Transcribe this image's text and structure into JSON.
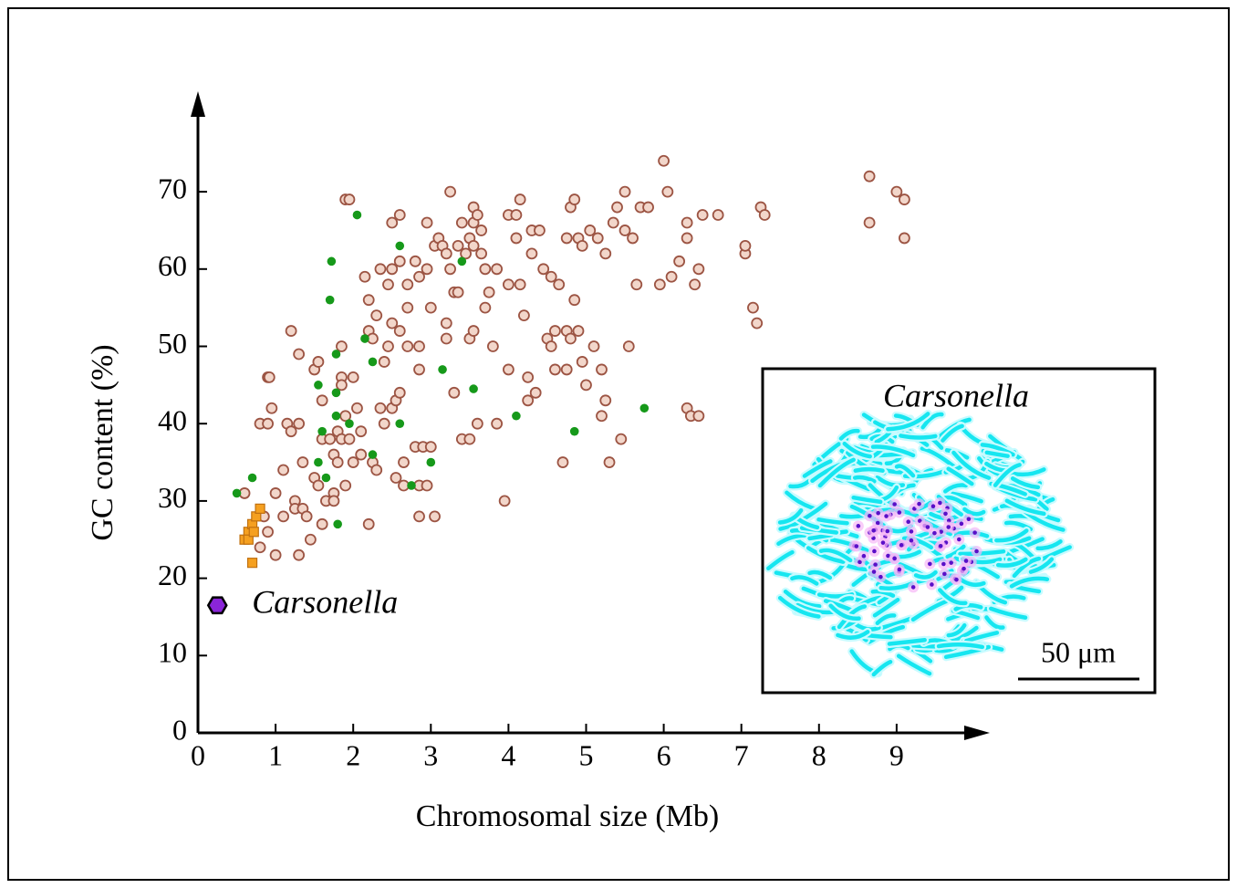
{
  "chart_data": {
    "type": "scatter",
    "x_label": "Chromosomal size (Mb)",
    "y_label": "GC content (%)",
    "xlim": [
      0,
      10.2
    ],
    "ylim": [
      0,
      83
    ],
    "xticks": [
      0,
      1,
      2,
      3,
      4,
      5,
      6,
      7,
      8,
      9
    ],
    "yticks": [
      0,
      10,
      20,
      30,
      40,
      50,
      60,
      70
    ],
    "grid": false,
    "annotation": "Carsonella",
    "inset": {
      "title": "Carsonella",
      "scale_bar_label": "50 μm"
    },
    "series": [
      {
        "marker": "circle",
        "color": "#f2d6ca",
        "edge_color": "#9c5443",
        "x": [
          0.6,
          0.8,
          0.85,
          0.9,
          0.8,
          0.9,
          0.9,
          0.92,
          0.95,
          1.0,
          1.0,
          1.1,
          1.1,
          1.15,
          1.2,
          1.2,
          1.25,
          1.25,
          1.3,
          1.3,
          1.3,
          1.35,
          1.35,
          1.4,
          1.45,
          1.5,
          1.5,
          1.55,
          1.55,
          1.6,
          1.6,
          1.6,
          1.65,
          1.7,
          1.75,
          1.75,
          1.75,
          1.8,
          1.8,
          1.85,
          1.85,
          1.85,
          1.85,
          1.9,
          1.9,
          1.9,
          1.95,
          1.95,
          2.0,
          2.0,
          2.05,
          2.1,
          2.1,
          2.15,
          2.2,
          2.2,
          2.2,
          2.25,
          2.25,
          2.3,
          2.3,
          2.35,
          2.35,
          2.4,
          2.4,
          2.45,
          2.45,
          2.5,
          2.5,
          2.5,
          2.5,
          2.55,
          2.55,
          2.6,
          2.6,
          2.6,
          2.6,
          2.65,
          2.65,
          2.7,
          2.7,
          2.7,
          2.8,
          2.8,
          2.85,
          2.85,
          2.85,
          2.85,
          2.85,
          2.9,
          2.95,
          2.95,
          2.95,
          3.0,
          3.0,
          3.05,
          3.05,
          3.1,
          3.15,
          3.2,
          3.2,
          3.2,
          3.25,
          3.25,
          3.3,
          3.3,
          3.35,
          3.35,
          3.4,
          3.4,
          3.45,
          3.5,
          3.5,
          3.5,
          3.55,
          3.55,
          3.55,
          3.55,
          3.6,
          3.6,
          3.65,
          3.65,
          3.7,
          3.7,
          3.75,
          3.8,
          3.85,
          3.85,
          3.95,
          4.0,
          4.0,
          4.0,
          4.1,
          4.1,
          4.15,
          4.15,
          4.2,
          4.25,
          4.25,
          4.3,
          4.3,
          4.35,
          4.4,
          4.45,
          4.5,
          4.55,
          4.55,
          4.6,
          4.6,
          4.65,
          4.7,
          4.75,
          4.75,
          4.75,
          4.8,
          4.8,
          4.85,
          4.85,
          4.9,
          4.9,
          4.95,
          4.95,
          5.0,
          5.05,
          5.1,
          5.15,
          5.2,
          5.2,
          5.25,
          5.25,
          5.3,
          5.35,
          5.4,
          5.45,
          5.5,
          5.5,
          5.55,
          5.6,
          5.65,
          5.7,
          5.8,
          5.95,
          6.0,
          6.05,
          6.1,
          6.2,
          6.3,
          6.3,
          6.3,
          6.35,
          6.4,
          6.45,
          6.45,
          6.5,
          6.7,
          7.05,
          7.05,
          7.15,
          7.2,
          7.25,
          7.3,
          8.65,
          8.65,
          9.0,
          9.1,
          9.1
        ],
        "y": [
          31,
          24,
          28,
          26,
          40,
          40,
          46,
          46,
          42,
          31,
          23,
          34,
          28,
          40,
          52,
          39,
          30,
          29,
          23,
          49,
          40,
          35,
          29,
          28,
          25,
          47,
          33,
          48,
          32,
          27,
          43,
          38,
          30,
          38,
          36,
          31,
          30,
          35,
          39,
          50,
          46,
          45,
          38,
          69,
          41,
          32,
          69,
          38,
          35,
          46,
          42,
          36,
          39,
          59,
          56,
          52,
          27,
          51,
          35,
          54,
          34,
          60,
          42,
          48,
          40,
          58,
          50,
          66,
          60,
          53,
          42,
          43,
          33,
          67,
          61,
          52,
          44,
          35,
          32,
          58,
          55,
          50,
          61,
          37,
          59,
          50,
          47,
          32,
          28,
          37,
          66,
          60,
          32,
          55,
          37,
          63,
          28,
          64,
          63,
          62,
          53,
          51,
          70,
          60,
          57,
          44,
          63,
          57,
          66,
          38,
          62,
          64,
          51,
          38,
          68,
          66,
          63,
          52,
          67,
          40,
          65,
          62,
          60,
          55,
          57,
          50,
          60,
          40,
          30,
          67,
          58,
          47,
          67,
          64,
          69,
          58,
          54,
          46,
          43,
          65,
          62,
          44,
          65,
          60,
          51,
          59,
          50,
          52,
          47,
          58,
          35,
          64,
          52,
          47,
          68,
          51,
          69,
          56,
          64,
          52,
          63,
          48,
          45,
          65,
          50,
          64,
          47,
          41,
          62,
          43,
          35,
          66,
          68,
          38,
          70,
          65,
          50,
          64,
          58,
          68,
          68,
          58,
          74,
          70,
          59,
          61,
          66,
          64,
          42,
          41,
          58,
          41,
          60,
          67,
          67,
          62,
          63,
          55,
          53,
          68,
          67,
          72,
          66,
          70,
          64,
          69
        ]
      },
      {
        "marker": "dot",
        "color": "#16991a",
        "edge_color": "#16991a",
        "x": [
          0.5,
          0.7,
          1.55,
          1.6,
          1.55,
          1.65,
          1.7,
          1.72,
          1.78,
          1.78,
          1.78,
          1.8,
          1.95,
          2.05,
          2.15,
          2.25,
          2.25,
          2.6,
          2.6,
          2.75,
          3.0,
          3.15,
          3.4,
          3.55,
          4.1,
          4.85,
          5.75
        ],
        "y": [
          31,
          33,
          35,
          39,
          45,
          33,
          56,
          61,
          49,
          44,
          41,
          27,
          40,
          67,
          51,
          48,
          36,
          63,
          40,
          32,
          35,
          47,
          61,
          44.5,
          41,
          39,
          42
        ]
      },
      {
        "marker": "square",
        "color": "#f5a020",
        "edge_color": "#c07010",
        "x": [
          0.6,
          0.65,
          0.65,
          0.7,
          0.7,
          0.75,
          0.8,
          0.72
        ],
        "y": [
          25,
          26,
          25,
          27,
          22,
          28,
          29,
          26
        ]
      },
      {
        "marker": "hexagon",
        "color": "#8a25d8",
        "edge_color": "#000000",
        "x": [
          0.25
        ],
        "y": [
          16.5
        ]
      }
    ]
  }
}
